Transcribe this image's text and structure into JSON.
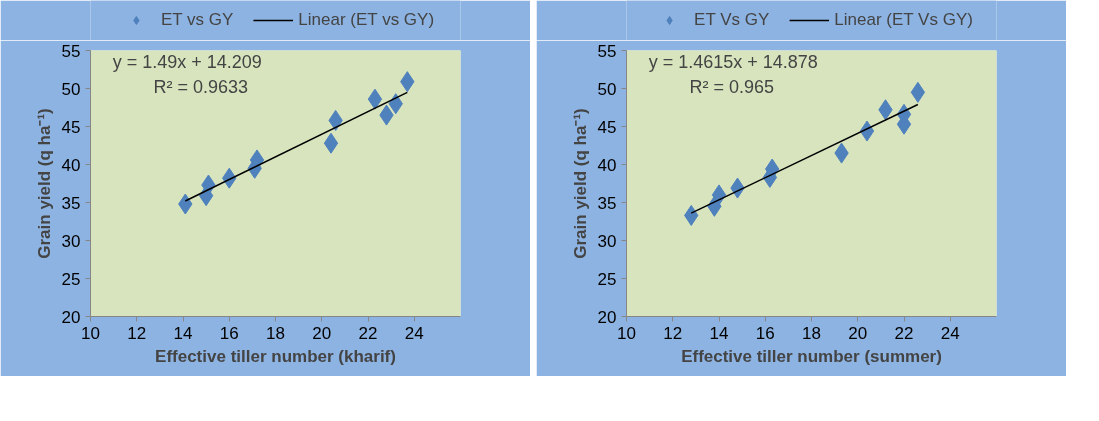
{
  "chart_data": [
    {
      "type": "scatter",
      "xlabel": "Effective tiller number (kharif)",
      "ylabel": "Grain yield (q ha⁻¹)",
      "xlim": [
        10,
        26
      ],
      "xticks": [
        10,
        12,
        14,
        16,
        18,
        20,
        22,
        24
      ],
      "ylim": [
        20,
        55
      ],
      "yticks": [
        20,
        25,
        30,
        35,
        40,
        45,
        50,
        55
      ],
      "grid": false,
      "legend": "top",
      "marker": "diamond",
      "annotations": [
        "y = 1.49x + 14.209",
        "R² = 0.9633"
      ],
      "series": [
        {
          "name": "ET vs GY",
          "color": "#4f81bd",
          "x": [
            14.1,
            15.0,
            15.1,
            16.0,
            17.1,
            17.2,
            20.4,
            20.6,
            22.3,
            22.8,
            23.2,
            23.7
          ],
          "values": [
            34.8,
            35.9,
            37.3,
            38.2,
            39.5,
            40.6,
            42.8,
            45.8,
            48.6,
            46.5,
            48.0,
            50.9
          ]
        },
        {
          "name": "Linear (ET vs GY)",
          "type": "line",
          "marker": "none",
          "color": "#000000",
          "x": [
            14.1,
            23.7
          ],
          "values": [
            35.2,
            49.5
          ]
        }
      ]
    },
    {
      "type": "scatter",
      "xlabel": "Effective tiller number (summer)",
      "ylabel": "Grain yield (q ha⁻¹)",
      "xlim": [
        10,
        26
      ],
      "xticks": [
        10,
        12,
        14,
        16,
        18,
        20,
        22,
        24
      ],
      "ylim": [
        20,
        55
      ],
      "yticks": [
        20,
        25,
        30,
        35,
        40,
        45,
        50,
        55
      ],
      "grid": false,
      "legend": "top",
      "marker": "diamond",
      "annotations": [
        "y = 1.4615x + 14.878",
        "R² = 0.965"
      ],
      "series": [
        {
          "name": "ET Vs GY",
          "color": "#4f81bd",
          "x": [
            12.8,
            13.8,
            14.0,
            14.8,
            16.2,
            16.3,
            19.3,
            20.4,
            21.2,
            22.0,
            22.0,
            22.6
          ],
          "values": [
            33.3,
            34.5,
            36.0,
            36.9,
            38.3,
            39.4,
            41.5,
            44.4,
            47.2,
            45.3,
            46.6,
            49.5
          ]
        },
        {
          "name": "Linear (ET Vs GY)",
          "type": "line",
          "marker": "none",
          "color": "#000000",
          "x": [
            12.8,
            22.6
          ],
          "values": [
            33.6,
            47.9
          ]
        }
      ]
    }
  ]
}
